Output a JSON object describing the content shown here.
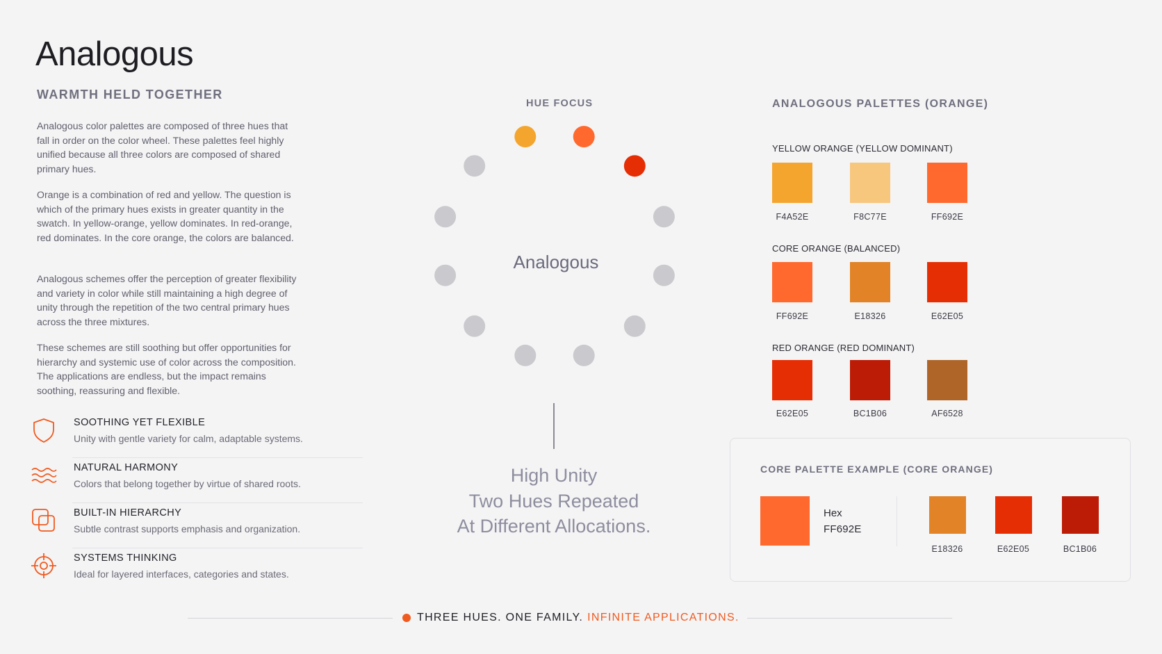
{
  "title": "Analogous",
  "subtitle": "WARMTH HELD TOGETHER",
  "paragraphs": [
    "Analogous color palettes are composed of three hues that fall in order on the color wheel. These palettes feel highly unified because all three colors are composed of shared primary hues.",
    "Orange is a combination of red and yellow. The question is which of the primary hues exists in greater quantity in the swatch. In yellow-orange, yellow dominates. In red-orange, red dominates. In the core orange, the colors are balanced.",
    "Analogous schemes offer the perception of greater flexibility and variety in color while still maintaining a high degree of unity through the repetition of the two central primary hues across the three mixtures.",
    "These schemes are still soothing but offer opportunities for hierarchy and systemic use of color across the composition. The applications are endless, but the impact remains soothing, reassuring and flexible."
  ],
  "features": [
    {
      "icon": "shield-icon",
      "title": "SOOTHING YET FLEXIBLE",
      "desc": "Unity with gentle variety for calm, adaptable systems."
    },
    {
      "icon": "waves-icon",
      "title": "NATURAL HARMONY",
      "desc": "Colors that belong together by virtue of shared roots."
    },
    {
      "icon": "layers-icon",
      "title": "BUILT-IN HIERARCHY",
      "desc": "Subtle contrast supports emphasis and organization."
    },
    {
      "icon": "crosshair-icon",
      "title": "SYSTEMS THINKING",
      "desc": "Ideal for layered interfaces, categories and states."
    }
  ],
  "hue_focus": {
    "label": "HUE FOCUS",
    "center_label": "Analogous",
    "dots": [
      {
        "color": "#FF692E"
      },
      {
        "color": "#E62E05"
      },
      {
        "color": "#CACACE"
      },
      {
        "color": "#CACACE"
      },
      {
        "color": "#CACACE"
      },
      {
        "color": "#CACACE"
      },
      {
        "color": "#CACACE"
      },
      {
        "color": "#CACACE"
      },
      {
        "color": "#CACACE"
      },
      {
        "color": "#CACACE"
      },
      {
        "color": "#CACACE"
      },
      {
        "color": "#F4A52E"
      }
    ],
    "tagline": [
      "High Unity",
      "Two Hues Repeated",
      "At Different Allocations."
    ]
  },
  "palettes": {
    "heading": "ANALOGOUS PALETTES (ORANGE)",
    "groups": [
      {
        "label": "YELLOW ORANGE (YELLOW DOMINANT)",
        "swatches": [
          {
            "hex": "F4A52E",
            "color": "#F4A52E"
          },
          {
            "hex": "F8C77E",
            "color": "#F8C77E"
          },
          {
            "hex": "FF692E",
            "color": "#FF692E"
          }
        ]
      },
      {
        "label": "CORE ORANGE (BALANCED)",
        "swatches": [
          {
            "hex": "FF692E",
            "color": "#FF692E"
          },
          {
            "hex": "E18326",
            "color": "#E18326"
          },
          {
            "hex": "E62E05",
            "color": "#E62E05"
          }
        ]
      },
      {
        "label": "RED ORANGE (RED DOMINANT)",
        "swatches": [
          {
            "hex": "E62E05",
            "color": "#E62E05"
          },
          {
            "hex": "BC1B06",
            "color": "#BC1B06"
          },
          {
            "hex": "AF6528",
            "color": "#AF6528"
          }
        ]
      }
    ]
  },
  "core_example": {
    "title": "CORE PALETTE EXAMPLE (CORE ORANGE)",
    "main_color": "#FF692E",
    "hex_label": "Hex",
    "hex_value": "FF692E",
    "swatches": [
      {
        "hex": "E18326",
        "color": "#E18326"
      },
      {
        "hex": "E62E05",
        "color": "#E62E05"
      },
      {
        "hex": "BC1B06",
        "color": "#BC1B06"
      }
    ]
  },
  "footer": {
    "text": "THREE HUES. ONE FAMILY.",
    "accent": "INFINITE APPLICATIONS.",
    "accent_color": "#F05A1E"
  }
}
